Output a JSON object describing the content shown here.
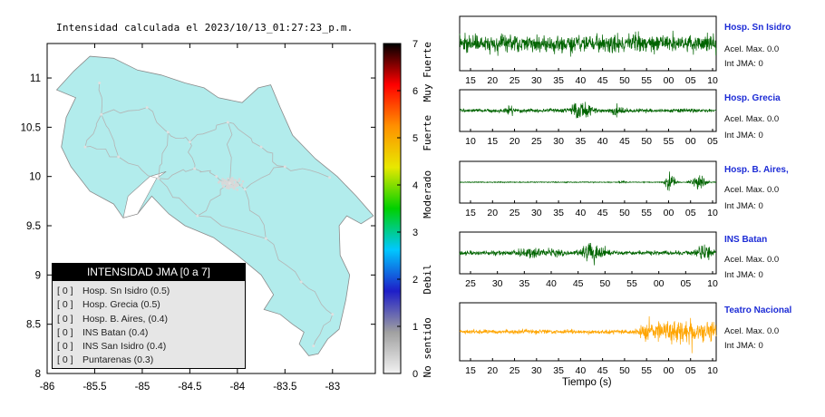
{
  "map": {
    "title": "Intensidad calculada el 2023/10/13_01:27:23_p.m.",
    "x_ticks": [
      "-86",
      "-85.5",
      "-85",
      "-84.5",
      "-84",
      "-83.5",
      "-83"
    ],
    "y_ticks": [
      "11",
      "10.5",
      "10",
      "9.5",
      "9",
      "8.5",
      "8"
    ],
    "x_range": [
      -86,
      -82.55
    ],
    "y_range": [
      8,
      11.35
    ],
    "colors": {
      "land": "#b2ecec",
      "road": "#b4b4b4",
      "border": "#8a8a8a"
    }
  },
  "colorbar": {
    "ticks": [
      "0",
      "1",
      "2",
      "3",
      "4",
      "5",
      "6",
      "7"
    ],
    "range": [
      0,
      7
    ],
    "categories": [
      "No sentido",
      "Debil",
      "Moderado",
      "Fuerte",
      "Muy Fuerte"
    ],
    "colors": [
      "#f2f2f2",
      "#a0a0a0",
      "#1e1ec8",
      "#00c8ff",
      "#00d000",
      "#e8e800",
      "#ff9000",
      "#ff0000",
      "#000000"
    ]
  },
  "legend": {
    "title": "INTENSIDAD JMA [0 a 7]",
    "items": [
      {
        "level": "[ 0 ]",
        "label": "Hosp. Sn Isidro (0.5)"
      },
      {
        "level": "[ 0 ]",
        "label": "Hosp. Grecia (0.5)"
      },
      {
        "level": "[ 0 ]",
        "label": "Hosp. B. Aires, (0.4)"
      },
      {
        "level": "[ 0 ]",
        "label": "INS Batan (0.4)"
      },
      {
        "level": "[ 0 ]",
        "label": "INS San Isidro (0.4)"
      },
      {
        "level": "[ 0 ]",
        "label": "Puntarenas (0.3)"
      }
    ]
  },
  "seismograms": {
    "time_axis_label": "Tiempo (s)",
    "stations": [
      {
        "name": "Hosp. Sn Isidro",
        "accel": "Acel. Max. 0.0",
        "jma": "Int JMA: 0",
        "color": "#006400",
        "ticks": [
          "15",
          "20",
          "25",
          "30",
          "35",
          "40",
          "45",
          "50",
          "55",
          "00",
          "05",
          "10"
        ]
      },
      {
        "name": "Hosp. Grecia",
        "accel": "Acel. Max. 0.0",
        "jma": "Int JMA: 0",
        "color": "#006400",
        "ticks": [
          "10",
          "15",
          "20",
          "25",
          "30",
          "35",
          "40",
          "45",
          "50",
          "55",
          "00",
          "05"
        ]
      },
      {
        "name": "Hosp. B. Aires,",
        "accel": "Acel. Max. 0.0",
        "jma": "Int JMA: 0",
        "color": "#006400",
        "ticks": [
          "15",
          "20",
          "25",
          "30",
          "35",
          "40",
          "45",
          "50",
          "55",
          "00",
          "05",
          "10"
        ]
      },
      {
        "name": "INS Batan",
        "accel": "Acel. Max. 0.0",
        "jma": "Int JMA: 0",
        "color": "#006400",
        "ticks": [
          "25",
          "30",
          "35",
          "40",
          "45",
          "50",
          "55",
          "00",
          "05",
          "10"
        ]
      },
      {
        "name": "Teatro Nacional",
        "accel": "Acel. Max. 0.0",
        "jma": "Int JMA: 0",
        "color": "#ffa500",
        "ticks": [
          "15",
          "20",
          "25",
          "30",
          "35",
          "40",
          "45",
          "50",
          "55",
          "00",
          "05",
          "10"
        ]
      }
    ]
  }
}
